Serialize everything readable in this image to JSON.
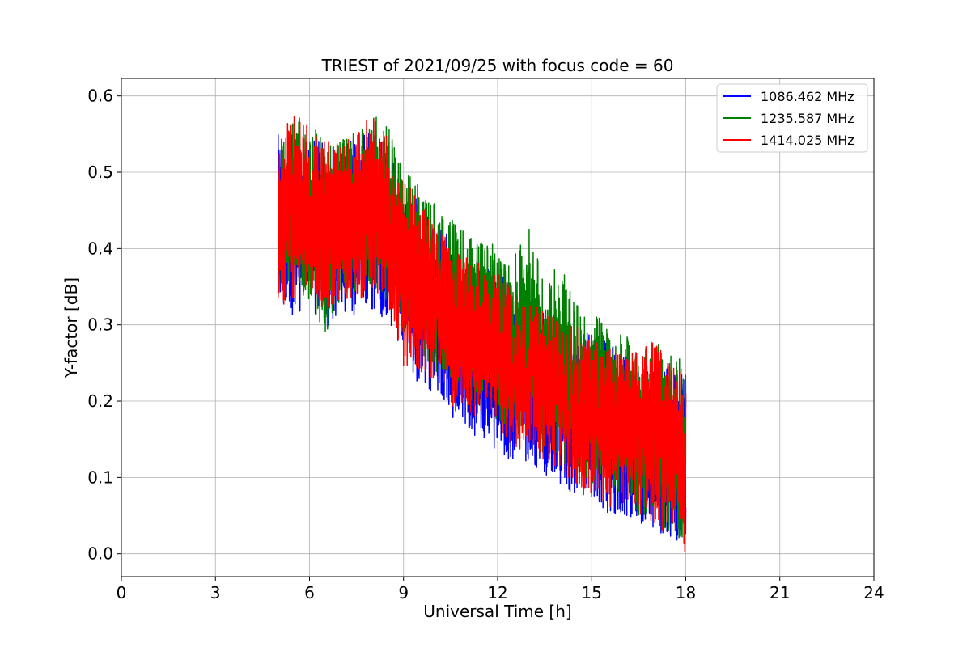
{
  "chart_data": {
    "type": "line",
    "title": "TRIEST of 2021/09/25 with focus code = 60",
    "xlabel": "Universal Time [h]",
    "ylabel": "Y-factor [dB]",
    "xlim": [
      0,
      24
    ],
    "ylim": [
      -0.03,
      0.623
    ],
    "xticks": [
      0,
      3,
      6,
      9,
      12,
      15,
      18,
      21,
      24
    ],
    "yticks": [
      0.0,
      0.1,
      0.2,
      0.3,
      0.4,
      0.5,
      0.6
    ],
    "ytick_labels": [
      "0.0",
      "0.1",
      "0.2",
      "0.3",
      "0.4",
      "0.5",
      "0.6"
    ],
    "grid": true,
    "legend_position": "top-right",
    "series": [
      {
        "name": "1086.462 MHz",
        "color": "#0000ff",
        "x": [
          5.0,
          5.5,
          6.0,
          6.5,
          7.0,
          7.5,
          8.0,
          8.5,
          9.0,
          9.5,
          10.0,
          10.5,
          11.0,
          11.5,
          12.0,
          12.5,
          13.0,
          13.5,
          14.0,
          14.5,
          15.0,
          15.5,
          16.0,
          16.5,
          17.0,
          17.5,
          18.0
        ],
        "y_upper": [
          0.55,
          0.56,
          0.54,
          0.55,
          0.53,
          0.55,
          0.57,
          0.53,
          0.49,
          0.46,
          0.44,
          0.42,
          0.4,
          0.38,
          0.37,
          0.36,
          0.34,
          0.33,
          0.31,
          0.3,
          0.29,
          0.28,
          0.27,
          0.26,
          0.25,
          0.25,
          0.24
        ],
        "y_lower": [
          0.32,
          0.31,
          0.32,
          0.29,
          0.31,
          0.31,
          0.32,
          0.3,
          0.26,
          0.22,
          0.21,
          0.18,
          0.16,
          0.15,
          0.13,
          0.12,
          0.12,
          0.1,
          0.09,
          0.07,
          0.07,
          0.05,
          0.05,
          0.03,
          0.03,
          0.02,
          0.01
        ]
      },
      {
        "name": "1235.587 MHz",
        "color": "#008000",
        "x": [
          5.0,
          5.5,
          6.0,
          6.5,
          7.0,
          7.5,
          8.0,
          8.5,
          9.0,
          9.5,
          10.0,
          10.5,
          11.0,
          11.5,
          12.0,
          12.5,
          13.0,
          13.5,
          14.0,
          14.5,
          15.0,
          15.5,
          16.0,
          16.5,
          17.0,
          17.5,
          18.0
        ],
        "y_upper": [
          0.54,
          0.57,
          0.56,
          0.55,
          0.54,
          0.56,
          0.58,
          0.56,
          0.51,
          0.48,
          0.46,
          0.44,
          0.42,
          0.42,
          0.4,
          0.39,
          0.43,
          0.36,
          0.38,
          0.33,
          0.32,
          0.3,
          0.29,
          0.27,
          0.28,
          0.27,
          0.25
        ],
        "y_lower": [
          0.34,
          0.34,
          0.33,
          0.28,
          0.33,
          0.34,
          0.35,
          0.33,
          0.28,
          0.26,
          0.24,
          0.22,
          0.2,
          0.19,
          0.17,
          0.16,
          0.15,
          0.13,
          0.12,
          0.1,
          0.09,
          0.08,
          0.07,
          0.05,
          0.05,
          0.01,
          0.01
        ]
      },
      {
        "name": "1414.025 MHz",
        "color": "#ff0000",
        "x": [
          5.0,
          5.5,
          6.0,
          6.5,
          7.0,
          7.5,
          8.0,
          8.5,
          9.0,
          9.5,
          10.0,
          10.5,
          11.0,
          11.5,
          12.0,
          12.5,
          13.0,
          13.5,
          14.0,
          14.5,
          15.0,
          15.5,
          16.0,
          16.5,
          17.0,
          17.5,
          18.0
        ],
        "y_upper": [
          0.54,
          0.59,
          0.56,
          0.55,
          0.54,
          0.56,
          0.58,
          0.55,
          0.5,
          0.46,
          0.43,
          0.41,
          0.39,
          0.38,
          0.37,
          0.35,
          0.33,
          0.32,
          0.3,
          0.3,
          0.29,
          0.28,
          0.27,
          0.27,
          0.28,
          0.25,
          0.23
        ],
        "y_lower": [
          0.32,
          0.33,
          0.33,
          0.32,
          0.33,
          0.33,
          0.34,
          0.33,
          0.24,
          0.23,
          0.22,
          0.19,
          0.18,
          0.17,
          0.16,
          0.14,
          0.13,
          0.12,
          0.11,
          0.09,
          0.08,
          0.06,
          0.06,
          0.05,
          0.04,
          0.02,
          0.0
        ]
      }
    ]
  }
}
